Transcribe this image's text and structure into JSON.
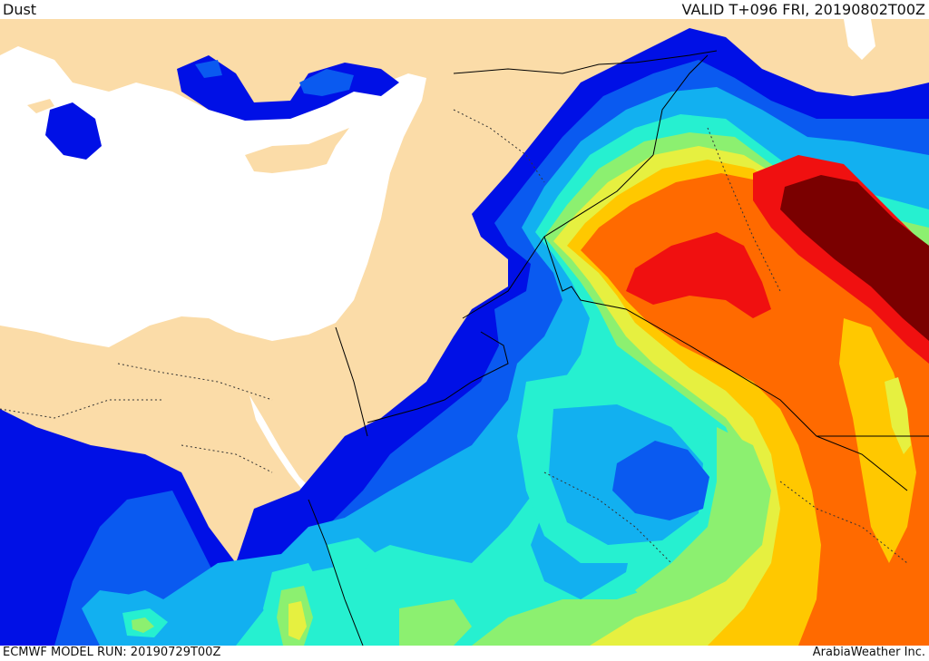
{
  "header": {
    "title": "Dust",
    "valid": "VALID T+096 FRI, 20190802T00Z"
  },
  "footer": {
    "model_run": "ECMWF MODEL RUN: 20190729T00Z",
    "credit": "ArabiaWeather Inc."
  },
  "colors": {
    "land": "#fbdca8",
    "sea": "#ffffff",
    "level_1": "#0010e6",
    "level_2": "#0a5af0",
    "level_3": "#12b0f0",
    "level_4": "#26f0d0",
    "level_5": "#8cf070",
    "level_6": "#e6f040",
    "level_7": "#ffc800",
    "level_8": "#ff6a00",
    "level_9": "#f01010",
    "level_10": "#7a0000"
  }
}
